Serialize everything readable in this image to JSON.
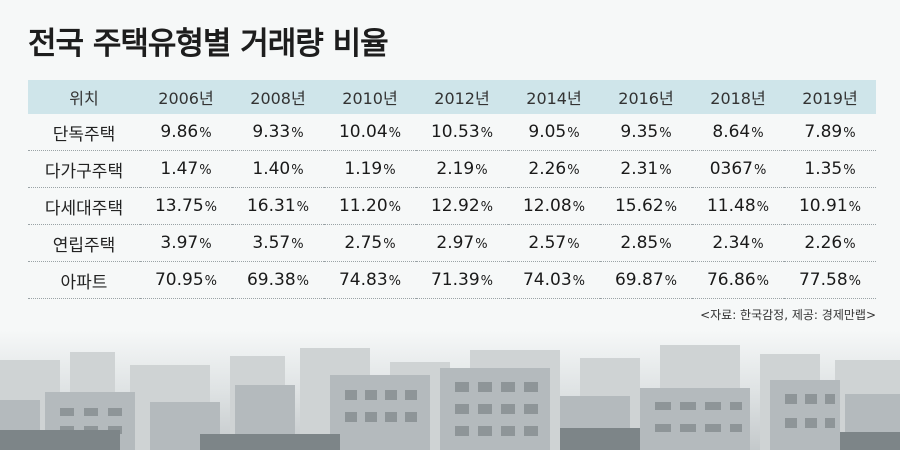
{
  "chart_data": {
    "type": "table",
    "title": "전국 주택유형별 거래량 비율",
    "header_label": "위치",
    "columns": [
      "2006년",
      "2008년",
      "2010년",
      "2012년",
      "2014년",
      "2016년",
      "2018년",
      "2019년"
    ],
    "unit": "%",
    "rows": [
      {
        "label": "단독주택",
        "values": [
          "9.86",
          "9.33",
          "10.04",
          "10.53",
          "9.05",
          "9.35",
          "8.64",
          "7.89"
        ]
      },
      {
        "label": "다가구주택",
        "values": [
          "1.47",
          "1.40",
          "1.19",
          "2.19",
          "2.26",
          "2.31",
          "0367",
          "1.35"
        ]
      },
      {
        "label": "다세대주택",
        "values": [
          "13.75",
          "16.31",
          "11.20",
          "12.92",
          "12.08",
          "15.62",
          "11.48",
          "10.91"
        ]
      },
      {
        "label": "연립주택",
        "values": [
          "3.97",
          "3.57",
          "2.75",
          "2.97",
          "2.57",
          "2.85",
          "2.34",
          "2.26"
        ]
      },
      {
        "label": "아파트",
        "values": [
          "70.95",
          "69.38",
          "74.83",
          "71.39",
          "74.03",
          "69.87",
          "76.86",
          "77.58"
        ]
      }
    ],
    "source": "<자료: 한국감정, 제공: 경제만랩>"
  },
  "colors": {
    "header_bg": "#cfe5ea",
    "background": "#f6f8f8"
  }
}
